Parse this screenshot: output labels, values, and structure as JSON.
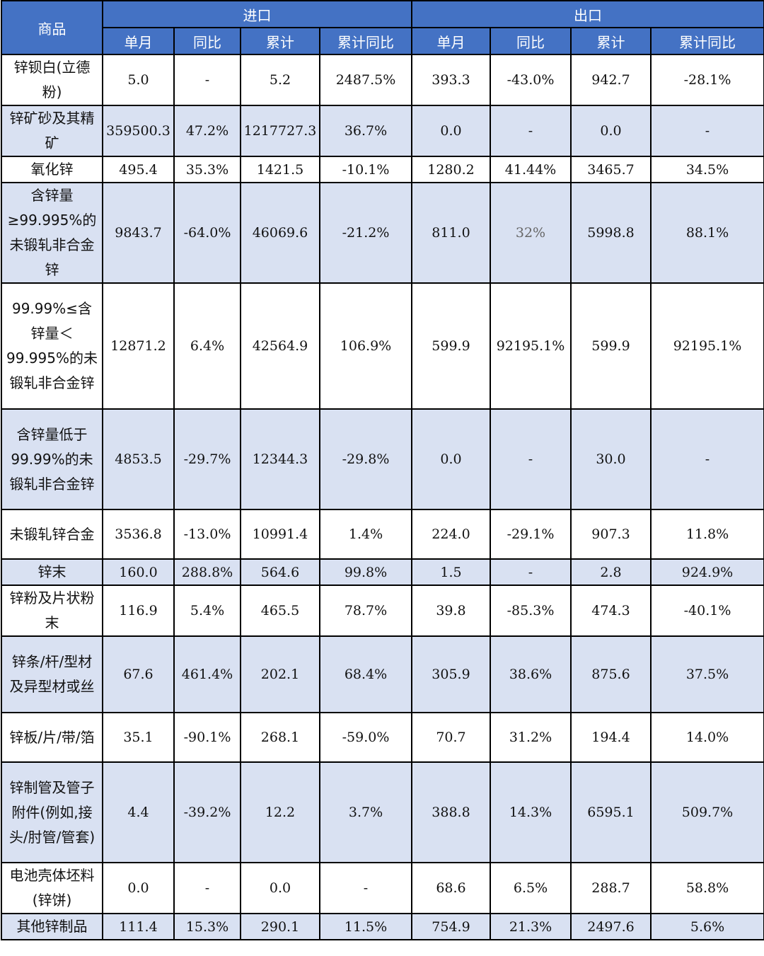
{
  "table": {
    "header": {
      "product": "商品",
      "import_group": "进口",
      "export_group": "出口",
      "sub_columns": [
        "单月",
        "同比",
        "累计",
        "累计同比",
        "单月",
        "同比",
        "累计",
        "累计同比"
      ]
    },
    "rows": [
      {
        "name": "锌钡白(立德粉)",
        "values": [
          "5.0",
          "-",
          "5.2",
          "2487.5%",
          "393.3",
          "-43.0%",
          "942.7",
          "-28.1%"
        ]
      },
      {
        "name": "锌矿砂及其精矿",
        "values": [
          "359500.3",
          "47.2%",
          "1217727.3",
          "36.7%",
          "0.0",
          "-",
          "0.0",
          "-"
        ]
      },
      {
        "name": "氧化锌",
        "values": [
          "495.4",
          "35.3%",
          "1421.5",
          "-10.1%",
          "1280.2",
          "41.44%",
          "3465.7",
          "34.5%"
        ]
      },
      {
        "name": "含锌量≥99.995%的未锻轧非合金锌",
        "values": [
          "9843.7",
          "-64.0%",
          "46069.6",
          "-21.2%",
          "811.0",
          "32%",
          "5998.8",
          "88.1%"
        ]
      },
      {
        "name": "99.99%≤含锌量＜99.995%的未锻轧非合金锌",
        "values": [
          "12871.2",
          "6.4%",
          "42564.9",
          "106.9%",
          "599.9",
          "92195.1%",
          "599.9",
          "92195.1%"
        ]
      },
      {
        "name": "含锌量低于99.99%的未锻轧非合金锌",
        "values": [
          "4853.5",
          "-29.7%",
          "12344.3",
          "-29.8%",
          "0.0",
          "-",
          "30.0",
          "-"
        ]
      },
      {
        "name": "未锻轧锌合金",
        "values": [
          "3536.8",
          "-13.0%",
          "10991.4",
          "1.4%",
          "224.0",
          "-29.1%",
          "907.3",
          "11.8%"
        ]
      },
      {
        "name": "锌末",
        "values": [
          "160.0",
          "288.8%",
          "564.6",
          "99.8%",
          "1.5",
          "-",
          "2.8",
          "924.9%"
        ]
      },
      {
        "name": "锌粉及片状粉末",
        "values": [
          "116.9",
          "5.4%",
          "465.5",
          "78.7%",
          "39.8",
          "-85.3%",
          "474.3",
          "-40.1%"
        ]
      },
      {
        "name": "锌条/杆/型材及异型材或丝",
        "values": [
          "67.6",
          "461.4%",
          "202.1",
          "68.4%",
          "305.9",
          "38.6%",
          "875.6",
          "37.5%"
        ]
      },
      {
        "name": "锌板/片/带/箔",
        "values": [
          "35.1",
          "-90.1%",
          "268.1",
          "-59.0%",
          "70.7",
          "31.2%",
          "194.4",
          "14.0%"
        ]
      },
      {
        "name": "锌制管及管子附件(例如,接头/肘管/管套)",
        "values": [
          "4.4",
          "-39.2%",
          "12.2",
          "3.7%",
          "388.8",
          "14.3%",
          "6595.1",
          "509.7%"
        ]
      },
      {
        "name": "电池壳体坯料(锌饼)",
        "values": [
          "0.0",
          "-",
          "0.0",
          "-",
          "68.6",
          "6.5%",
          "288.7",
          "58.8%"
        ]
      },
      {
        "name": "其他锌制品",
        "values": [
          "111.4",
          "15.3%",
          "290.1",
          "11.5%",
          "754.9",
          "21.3%",
          "2497.6",
          "5.6%"
        ]
      }
    ]
  }
}
